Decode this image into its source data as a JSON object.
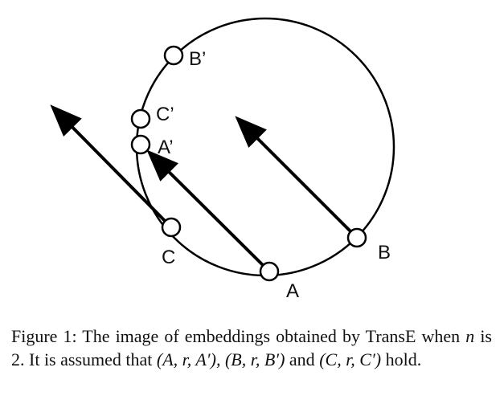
{
  "labels": {
    "A": "A",
    "B": "B",
    "C": "C",
    "A_prime": "A’",
    "B_prime": "B’",
    "C_prime": "C’"
  },
  "caption": {
    "prefix": "Figure 1: The image of embeddings obtained by TransE when",
    "n": "n",
    "middle": "is 2. It is assumed that",
    "triple_1": "(A, r, A′),",
    "triple_2": "(B, r, B′)",
    "and": "and",
    "triple_3": "(C, r, C′)",
    "suffix": "hold."
  },
  "colors": {
    "stroke": "#000000",
    "node_fill": "#ffffff",
    "text": "#111111"
  }
}
